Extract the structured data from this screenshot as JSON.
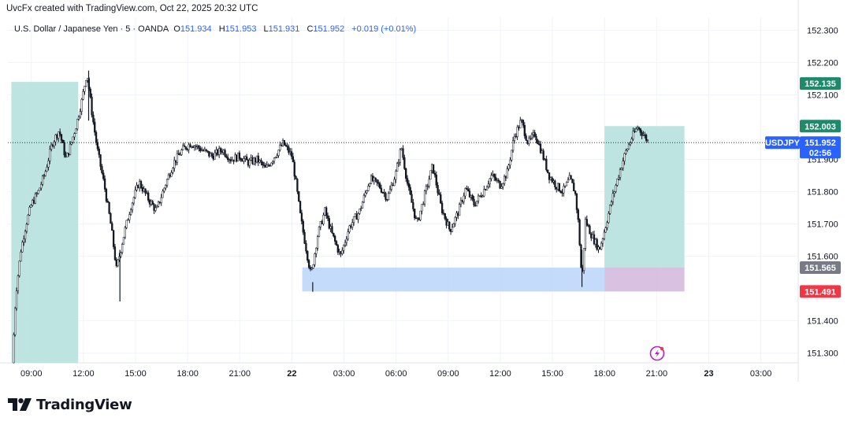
{
  "header": {
    "text": "UvcFx created with TradingView.com, Oct 22, 2025 20:32 UTC"
  },
  "legend": {
    "symbol": "U.S. Dollar / Japanese Yen · 5 · OANDA",
    "o_label": "O",
    "o_value": "151.934",
    "h_label": "H",
    "h_value": "151.953",
    "l_label": "L",
    "l_value": "151.931",
    "c_label": "C",
    "c_value": "151.952",
    "change": "+0.019 (+0.01%)"
  },
  "colors": {
    "bull": "#ffffff",
    "bear": "#131722",
    "zone_green": "#b2dfdb",
    "zone_blue": "#bbd5fb",
    "zone_purple": "#d1b6dc",
    "badge_green": "#1e8a68",
    "badge_gray": "#787b86",
    "badge_red": "#f23645",
    "badge_blue": "#2962ff",
    "alert": "#b721c9"
  },
  "logo": {
    "icon": "tradingview-logo-icon",
    "text": "TradingView"
  },
  "chart_data": {
    "type": "candlestick",
    "symbol": "USDJPY",
    "interval": "5",
    "y_ticks": [
      "152.300",
      "152.200",
      "152.100",
      "151.900",
      "151.800",
      "151.700",
      "151.600",
      "151.400",
      "151.300"
    ],
    "y_tick_values": [
      152.3,
      152.2,
      152.1,
      151.9,
      151.8,
      151.7,
      151.6,
      151.4,
      151.3
    ],
    "ylim": [
      151.27,
      152.34
    ],
    "x_ticks": [
      "09:00",
      "12:00",
      "15:00",
      "18:00",
      "21:00",
      "22",
      "03:00",
      "06:00",
      "09:00",
      "12:00",
      "15:00",
      "18:00",
      "21:00",
      "23",
      "03:00"
    ],
    "x_tick_hours": [
      9,
      12,
      15,
      18,
      21,
      24,
      27,
      30,
      33,
      36,
      39,
      42,
      45,
      48,
      51
    ],
    "xlim_hours": [
      7.65,
      53.15
    ],
    "last_hour": 44.55,
    "price_path": [
      [
        7.9,
        151.27
      ],
      [
        8.1,
        151.48
      ],
      [
        8.4,
        151.62
      ],
      [
        8.7,
        151.7
      ],
      [
        9.0,
        151.76
      ],
      [
        9.4,
        151.8
      ],
      [
        9.8,
        151.86
      ],
      [
        10.2,
        151.95
      ],
      [
        10.6,
        151.99
      ],
      [
        11.0,
        151.9
      ],
      [
        11.3,
        151.95
      ],
      [
        11.6,
        152.01
      ],
      [
        11.9,
        152.08
      ],
      [
        12.2,
        152.17
      ],
      [
        12.5,
        152.04
      ],
      [
        12.8,
        151.93
      ],
      [
        13.2,
        151.82
      ],
      [
        13.6,
        151.69
      ],
      [
        13.9,
        151.56
      ],
      [
        14.3,
        151.66
      ],
      [
        14.7,
        151.75
      ],
      [
        15.2,
        151.83
      ],
      [
        15.7,
        151.78
      ],
      [
        16.2,
        151.74
      ],
      [
        16.7,
        151.82
      ],
      [
        17.2,
        151.89
      ],
      [
        17.7,
        151.93
      ],
      [
        18.2,
        151.95
      ],
      [
        18.8,
        151.93
      ],
      [
        19.4,
        151.91
      ],
      [
        20.0,
        151.93
      ],
      [
        20.5,
        151.9
      ],
      [
        21.0,
        151.91
      ],
      [
        21.5,
        151.89
      ],
      [
        22.0,
        151.9
      ],
      [
        22.5,
        151.87
      ],
      [
        23.0,
        151.91
      ],
      [
        23.5,
        151.95
      ],
      [
        24.0,
        151.91
      ],
      [
        24.2,
        151.84
      ],
      [
        24.5,
        151.72
      ],
      [
        24.8,
        151.63
      ],
      [
        25.1,
        151.54
      ],
      [
        25.5,
        151.67
      ],
      [
        25.9,
        151.74
      ],
      [
        26.3,
        151.67
      ],
      [
        26.8,
        151.6
      ],
      [
        27.3,
        151.69
      ],
      [
        27.9,
        151.74
      ],
      [
        28.5,
        151.84
      ],
      [
        29.0,
        151.82
      ],
      [
        29.5,
        151.78
      ],
      [
        30.0,
        151.86
      ],
      [
        30.3,
        151.94
      ],
      [
        30.7,
        151.81
      ],
      [
        31.2,
        151.7
      ],
      [
        31.7,
        151.8
      ],
      [
        32.1,
        151.88
      ],
      [
        32.6,
        151.75
      ],
      [
        33.1,
        151.68
      ],
      [
        33.6,
        151.74
      ],
      [
        34.0,
        151.81
      ],
      [
        34.5,
        151.76
      ],
      [
        35.0,
        151.8
      ],
      [
        35.5,
        151.85
      ],
      [
        36.0,
        151.82
      ],
      [
        36.4,
        151.86
      ],
      [
        36.8,
        151.97
      ],
      [
        37.2,
        152.02
      ],
      [
        37.6,
        151.95
      ],
      [
        38.0,
        151.98
      ],
      [
        38.4,
        151.92
      ],
      [
        38.8,
        151.85
      ],
      [
        39.2,
        151.82
      ],
      [
        39.6,
        151.8
      ],
      [
        40.0,
        151.84
      ],
      [
        40.3,
        151.8
      ],
      [
        40.5,
        151.7
      ],
      [
        40.7,
        151.52
      ],
      [
        40.9,
        151.71
      ],
      [
        41.3,
        151.66
      ],
      [
        41.7,
        151.62
      ],
      [
        42.0,
        151.68
      ],
      [
        42.4,
        151.77
      ],
      [
        42.8,
        151.85
      ],
      [
        43.2,
        151.92
      ],
      [
        43.6,
        151.97
      ],
      [
        43.9,
        152.0
      ],
      [
        44.2,
        151.98
      ],
      [
        44.55,
        151.952
      ]
    ],
    "zones": [
      {
        "name": "left-green-zone",
        "x0": 7.85,
        "x1": 11.7,
        "y0": 151.27,
        "y1": 152.14,
        "color": "#b2dfdb"
      },
      {
        "name": "blue-support-zone",
        "x0": 24.6,
        "x1": 42.0,
        "y0": 151.491,
        "y1": 151.565,
        "color": "#bbd5fb"
      },
      {
        "name": "green-target-zone",
        "x0": 42.0,
        "x1": 46.6,
        "y0": 151.565,
        "y1": 152.003,
        "color": "#b2dfdb"
      },
      {
        "name": "purple-stop-zone",
        "x0": 42.0,
        "x1": 46.6,
        "y0": 151.491,
        "y1": 151.565,
        "color": "#d1b6dc"
      }
    ],
    "price_badges": [
      {
        "name": "badge-152135",
        "label": "152.135",
        "value": 152.135,
        "color": "#1e8a68"
      },
      {
        "name": "badge-152003",
        "label": "152.003",
        "value": 152.003,
        "color": "#1e8a68"
      },
      {
        "name": "badge-151565",
        "label": "151.565",
        "value": 151.565,
        "color": "#787b86"
      },
      {
        "name": "badge-151491",
        "label": "151.491",
        "value": 151.491,
        "color": "#f23645"
      }
    ],
    "current_price": {
      "symbol_label": "USDJPY",
      "price_label": "151.952",
      "countdown": "02:56",
      "value": 151.952
    },
    "alert_icon": "lightning-alert-icon",
    "grid": true
  }
}
